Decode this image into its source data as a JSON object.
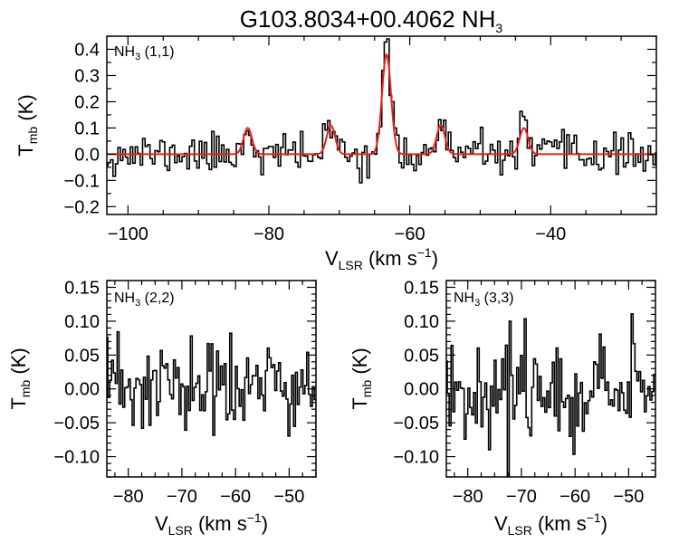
{
  "figure_title": {
    "main": "G103.8034+00.4062 NH",
    "sub": "3"
  },
  "chart_data": [
    {
      "type": "line",
      "panel": "top",
      "annotation": {
        "pre": "NH",
        "sub": "3",
        "post": " (1,1)"
      },
      "ylabel": {
        "main": "T",
        "sub": "mb",
        "post": " (K)"
      },
      "xlabel": {
        "main": "V",
        "sub": "LSR",
        "post": " (km s",
        "sup": "−1",
        "end": ")"
      },
      "xlim": [
        -103,
        -25
      ],
      "ylim": [
        -0.23,
        0.45
      ],
      "xticks": [
        -100,
        -80,
        -60,
        -40
      ],
      "xtick_labels": [
        "−100",
        "−80",
        "−60",
        "−40"
      ],
      "yticks": [
        -0.2,
        -0.1,
        0.0,
        0.1,
        0.2,
        0.3,
        0.4
      ],
      "ytick_labels": [
        "−0.2",
        "−0.1",
        "0.0",
        "0.1",
        "0.2",
        "0.3",
        "0.4"
      ],
      "noise_sigma": 0.045,
      "channel_width": 0.35,
      "seed": 11,
      "series": [
        {
          "name": "observed spectrum",
          "style": "histogram",
          "color": "#000000"
        },
        {
          "name": "hyperfine fit",
          "style": "line",
          "color": "#e8211c",
          "components": [
            {
              "center": -83.0,
              "amplitude": 0.1,
              "fwhm": 1.4
            },
            {
              "center": -71.2,
              "amplitude": 0.11,
              "fwhm": 1.4
            },
            {
              "center": -63.3,
              "amplitude": 0.38,
              "fwhm": 1.5
            },
            {
              "center": -55.6,
              "amplitude": 0.11,
              "fwhm": 1.4
            },
            {
              "center": -43.8,
              "amplitude": 0.1,
              "fwhm": 1.4
            }
          ]
        }
      ]
    },
    {
      "type": "line",
      "panel": "bottom-left",
      "annotation": {
        "pre": "NH",
        "sub": "3",
        "post": " (2,2)"
      },
      "ylabel": {
        "main": "T",
        "sub": "mb",
        "post": " (K)"
      },
      "xlabel": {
        "main": "V",
        "sub": "LSR",
        "post": " (km s",
        "sup": "−1",
        "end": ")"
      },
      "xlim": [
        -84,
        -45
      ],
      "ylim": [
        -0.13,
        0.16
      ],
      "xticks": [
        -80,
        -70,
        -60,
        -50
      ],
      "xtick_labels": [
        "−80",
        "−70",
        "−60",
        "−50"
      ],
      "yticks": [
        -0.1,
        -0.05,
        0.0,
        0.05,
        0.1,
        0.15
      ],
      "ytick_labels": [
        "−0.10",
        "−0.05",
        "0.00",
        "0.05",
        "0.10",
        "0.15"
      ],
      "noise_sigma": 0.045,
      "channel_width": 0.35,
      "seed": 23,
      "series": [
        {
          "name": "observed spectrum",
          "style": "histogram",
          "color": "#000000"
        }
      ]
    },
    {
      "type": "line",
      "panel": "bottom-right",
      "annotation": {
        "pre": "NH",
        "sub": "3",
        "post": " (3,3)"
      },
      "ylabel": {
        "main": "T",
        "sub": "mb",
        "post": " (K)"
      },
      "xlabel": {
        "main": "V",
        "sub": "LSR",
        "post": " (km s",
        "sup": "−1",
        "end": ")"
      },
      "xlim": [
        -84,
        -45
      ],
      "ylim": [
        -0.13,
        0.16
      ],
      "xticks": [
        -80,
        -70,
        -60,
        -50
      ],
      "xtick_labels": [
        "−80",
        "−70",
        "−60",
        "−50"
      ],
      "yticks": [
        -0.1,
        -0.05,
        0.0,
        0.05,
        0.1,
        0.15
      ],
      "ytick_labels": [
        "−0.10",
        "−0.05",
        "0.00",
        "0.05",
        "0.10",
        "0.15"
      ],
      "noise_sigma": 0.042,
      "channel_width": 0.35,
      "seed": 37,
      "spikes": [
        {
          "velocity": -72.3,
          "value": -0.13
        },
        {
          "velocity": -72.0,
          "value": 0.1
        }
      ],
      "series": [
        {
          "name": "observed spectrum",
          "style": "histogram",
          "color": "#000000"
        }
      ]
    }
  ]
}
